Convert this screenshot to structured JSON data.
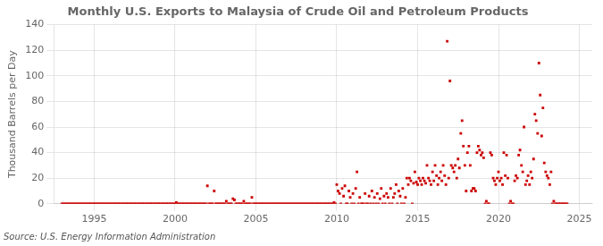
{
  "chart_data": {
    "type": "scatter",
    "title": "Monthly U.S. Exports to Malaysia of Crude Oil and Petroleum Products",
    "y_label": "Thousand Barrels per Day",
    "annotations": [
      "Source: U.S. Energy Information Administration"
    ],
    "color": "#cc0000",
    "marker": "square",
    "grid": true,
    "xlim": [
      1992.5,
      2025.8
    ],
    "xticks": [
      1995,
      2000,
      2005,
      2010,
      2015,
      2020,
      2025
    ],
    "ylim": [
      0,
      140
    ],
    "yticks": [
      0,
      20,
      40,
      60,
      80,
      100,
      120,
      140
    ],
    "x": [
      1993.0,
      1993.08,
      1993.17,
      1993.25,
      1993.33,
      1993.42,
      1993.5,
      1993.58,
      1993.67,
      1993.75,
      1993.83,
      1993.92,
      1994.0,
      1994.08,
      1994.17,
      1994.25,
      1994.33,
      1994.42,
      1994.5,
      1994.58,
      1994.67,
      1994.75,
      1994.83,
      1994.92,
      1995.0,
      1995.08,
      1995.17,
      1995.25,
      1995.33,
      1995.42,
      1995.5,
      1995.58,
      1995.67,
      1995.75,
      1995.83,
      1995.92,
      1996.0,
      1996.08,
      1996.17,
      1996.25,
      1996.33,
      1996.42,
      1996.5,
      1996.58,
      1996.67,
      1996.75,
      1996.83,
      1996.92,
      1997.0,
      1997.08,
      1997.17,
      1997.25,
      1997.33,
      1997.42,
      1997.5,
      1997.58,
      1997.67,
      1997.75,
      1997.83,
      1997.92,
      1998.0,
      1998.08,
      1998.17,
      1998.25,
      1998.33,
      1998.42,
      1998.5,
      1998.58,
      1998.67,
      1998.75,
      1998.83,
      1998.92,
      1999.0,
      1999.08,
      1999.17,
      1999.25,
      1999.33,
      1999.42,
      1999.5,
      1999.58,
      1999.67,
      1999.75,
      1999.83,
      1999.92,
      2000.0,
      2000.08,
      2000.17,
      2000.25,
      2000.33,
      2000.42,
      2000.5,
      2000.58,
      2000.67,
      2000.75,
      2000.83,
      2000.92,
      2001.0,
      2001.08,
      2001.17,
      2001.25,
      2001.33,
      2001.42,
      2001.5,
      2001.58,
      2001.67,
      2001.75,
      2001.83,
      2001.92,
      2002.0,
      2002.08,
      2002.17,
      2002.25,
      2002.33,
      2002.42,
      2002.5,
      2002.58,
      2002.67,
      2002.75,
      2002.83,
      2002.92,
      2003.0,
      2003.08,
      2003.17,
      2003.25,
      2003.33,
      2003.42,
      2003.5,
      2003.58,
      2003.67,
      2003.75,
      2003.83,
      2003.92,
      2004.0,
      2004.08,
      2004.17,
      2004.25,
      2004.33,
      2004.42,
      2004.5,
      2004.58,
      2004.67,
      2004.75,
      2004.83,
      2004.92,
      2005.0,
      2005.08,
      2005.17,
      2005.25,
      2005.33,
      2005.42,
      2005.5,
      2005.58,
      2005.67,
      2005.75,
      2005.83,
      2005.92,
      2006.0,
      2006.08,
      2006.17,
      2006.25,
      2006.33,
      2006.42,
      2006.5,
      2006.58,
      2006.67,
      2006.75,
      2006.83,
      2006.92,
      2007.0,
      2007.08,
      2007.17,
      2007.25,
      2007.33,
      2007.42,
      2007.5,
      2007.58,
      2007.67,
      2007.75,
      2007.83,
      2007.92,
      2008.0,
      2008.08,
      2008.17,
      2008.25,
      2008.33,
      2008.42,
      2008.5,
      2008.58,
      2008.67,
      2008.75,
      2008.83,
      2008.92,
      2009.0,
      2009.08,
      2009.17,
      2009.25,
      2009.33,
      2009.42,
      2009.5,
      2009.58,
      2009.67,
      2009.75,
      2009.83,
      2009.92,
      2010.0,
      2010.08,
      2010.17,
      2010.25,
      2010.33,
      2010.42,
      2010.5,
      2010.58,
      2010.67,
      2010.75,
      2010.83,
      2010.92,
      2011.0,
      2011.08,
      2011.17,
      2011.25,
      2011.33,
      2011.42,
      2011.5,
      2011.58,
      2011.67,
      2011.75,
      2011.83,
      2011.92,
      2012.0,
      2012.08,
      2012.17,
      2012.25,
      2012.33,
      2012.42,
      2012.5,
      2012.58,
      2012.67,
      2012.75,
      2012.83,
      2012.92,
      2013.0,
      2013.08,
      2013.17,
      2013.25,
      2013.33,
      2013.42,
      2013.5,
      2013.58,
      2013.67,
      2013.75,
      2013.83,
      2013.92,
      2014.0,
      2014.08,
      2014.17,
      2014.25,
      2014.33,
      2014.42,
      2014.5,
      2014.58,
      2014.67,
      2014.75,
      2014.83,
      2014.92,
      2015.0,
      2015.08,
      2015.17,
      2015.25,
      2015.33,
      2015.42,
      2015.5,
      2015.58,
      2015.67,
      2015.75,
      2015.83,
      2015.92,
      2016.0,
      2016.08,
      2016.17,
      2016.25,
      2016.33,
      2016.42,
      2016.5,
      2016.58,
      2016.67,
      2016.75,
      2016.83,
      2016.92,
      2017.0,
      2017.08,
      2017.17,
      2017.25,
      2017.33,
      2017.42,
      2017.5,
      2017.58,
      2017.67,
      2017.75,
      2017.83,
      2017.92,
      2018.0,
      2018.08,
      2018.17,
      2018.25,
      2018.33,
      2018.42,
      2018.5,
      2018.58,
      2018.67,
      2018.75,
      2018.83,
      2018.92,
      2019.0,
      2019.08,
      2019.17,
      2019.25,
      2019.33,
      2019.42,
      2019.5,
      2019.58,
      2019.67,
      2019.75,
      2019.83,
      2019.92,
      2020.0,
      2020.08,
      2020.17,
      2020.25,
      2020.33,
      2020.42,
      2020.5,
      2020.58,
      2020.67,
      2020.75,
      2020.83,
      2020.92,
      2021.0,
      2021.08,
      2021.17,
      2021.25,
      2021.33,
      2021.42,
      2021.5,
      2021.58,
      2021.67,
      2021.75,
      2021.83,
      2021.92,
      2022.0,
      2022.08,
      2022.17,
      2022.25,
      2022.33,
      2022.42,
      2022.5,
      2022.58,
      2022.67,
      2022.75,
      2022.83,
      2022.92,
      2023.0,
      2023.08,
      2023.17,
      2023.25,
      2023.33,
      2023.42,
      2023.5,
      2023.58,
      2023.67,
      2023.75,
      2023.83,
      2023.92,
      2024.0,
      2024.08,
      2024.17,
      2024.25
    ],
    "values": [
      0,
      0,
      0,
      0,
      0,
      0,
      0,
      0,
      0,
      0,
      0,
      0,
      0,
      0,
      0,
      0,
      0,
      0,
      0,
      0,
      0,
      0,
      0,
      0,
      0,
      0,
      0,
      0,
      0,
      0,
      0,
      0,
      0,
      0,
      0,
      0,
      0,
      0,
      0,
      0,
      0,
      0,
      0,
      0,
      0,
      0,
      0,
      0,
      0,
      0,
      0,
      0,
      0,
      0,
      0,
      0,
      0,
      0,
      0,
      0,
      0,
      0,
      0,
      0,
      0,
      0,
      0,
      0,
      0,
      0,
      0,
      0,
      0,
      0,
      0,
      0,
      0,
      0,
      0,
      0,
      0,
      0,
      0,
      0,
      0,
      1,
      0,
      0,
      0,
      0,
      0,
      0,
      0,
      0,
      0,
      0,
      0,
      0,
      0,
      0,
      0,
      0,
      0,
      0,
      0,
      0,
      0,
      0,
      14,
      0,
      0,
      0,
      0,
      10,
      0,
      0,
      0,
      0,
      0,
      0,
      0,
      0,
      2,
      0,
      0,
      0,
      0,
      4,
      3,
      0,
      0,
      0,
      0,
      0,
      0,
      2,
      0,
      0,
      0,
      0,
      0,
      5,
      0,
      0,
      0,
      0,
      0,
      0,
      0,
      0,
      0,
      0,
      0,
      0,
      0,
      0,
      0,
      0,
      0,
      0,
      0,
      0,
      0,
      0,
      0,
      0,
      0,
      0,
      0,
      0,
      0,
      0,
      0,
      0,
      0,
      0,
      0,
      0,
      0,
      0,
      0,
      0,
      0,
      0,
      0,
      0,
      0,
      0,
      0,
      0,
      0,
      0,
      0,
      0,
      0,
      0,
      0,
      0,
      0,
      0,
      0,
      0,
      1,
      0,
      15,
      10,
      8,
      0,
      12,
      6,
      14,
      0,
      0,
      10,
      5,
      0,
      8,
      0,
      12,
      25,
      0,
      5,
      0,
      0,
      0,
      8,
      0,
      0,
      6,
      0,
      10,
      0,
      5,
      0,
      8,
      0,
      4,
      12,
      0,
      6,
      0,
      8,
      5,
      0,
      12,
      0,
      5,
      8,
      15,
      0,
      10,
      6,
      0,
      12,
      0,
      5,
      20,
      15,
      20,
      18,
      0,
      16,
      25,
      17,
      15,
      20,
      18,
      15,
      20,
      18,
      16,
      30,
      20,
      18,
      15,
      25,
      18,
      30,
      22,
      15,
      20,
      25,
      18,
      30,
      22,
      15,
      127,
      20,
      96,
      30,
      28,
      25,
      30,
      20,
      35,
      28,
      55,
      65,
      45,
      30,
      10,
      40,
      45,
      30,
      10,
      12,
      12,
      10,
      40,
      45,
      42,
      38,
      40,
      36,
      0,
      2,
      0,
      0,
      40,
      38,
      20,
      18,
      15,
      20,
      25,
      18,
      20,
      15,
      40,
      22,
      38,
      20,
      0,
      2,
      0,
      0,
      18,
      22,
      20,
      38,
      42,
      30,
      25,
      60,
      15,
      18,
      22,
      15,
      25,
      20,
      35,
      70,
      65,
      55,
      110,
      85,
      53,
      75,
      32,
      25,
      22,
      20,
      15,
      25,
      0,
      2,
      0,
      0,
      0,
      0,
      0,
      0,
      0,
      0,
      0,
      0
    ]
  }
}
